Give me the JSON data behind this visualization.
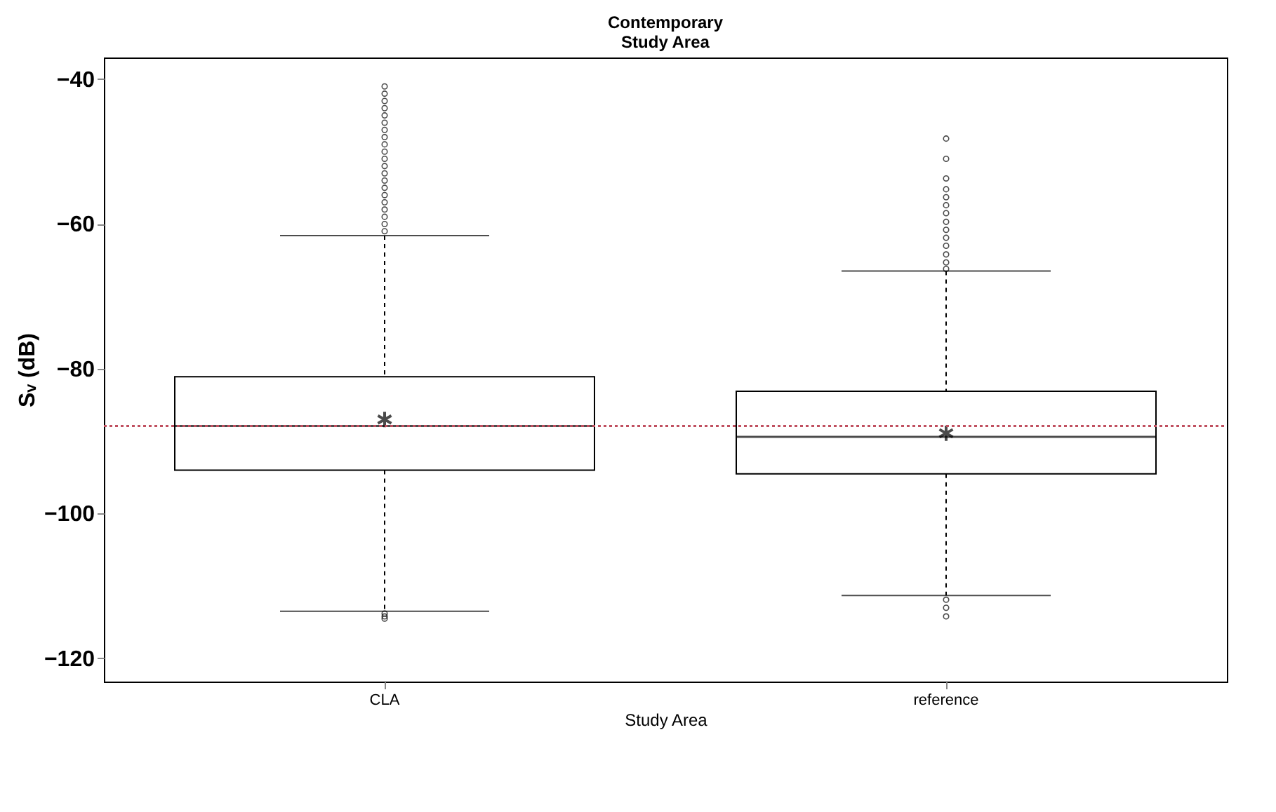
{
  "chart_data": {
    "type": "box",
    "title": "Contemporary\nStudy Area",
    "xlabel": "Study Area",
    "ylabel": "Sᵥ (dB)",
    "categories": [
      "CLA",
      "reference"
    ],
    "boxes": [
      {
        "low": -113.5,
        "q1": -94.0,
        "median": -87.9,
        "q3": -81.1,
        "high": -61.6,
        "mean": -87.0,
        "outliers": [
          -41,
          -42,
          -43,
          -44,
          -45,
          -46,
          -47,
          -48,
          -49,
          -50,
          -51,
          -52,
          -53,
          -54,
          -55,
          -56,
          -57,
          -58,
          -59,
          -60,
          -61,
          -113.8,
          -114.2,
          -114.5
        ]
      },
      {
        "low": -111.3,
        "q1": -94.5,
        "median": -89.4,
        "q3": -83.1,
        "high": -66.5,
        "mean": -88.9,
        "outliers": [
          -48.2,
          -51.0,
          -53.7,
          -55.2,
          -56.3,
          -57.4,
          -58.5,
          -59.7,
          -60.8,
          -61.9,
          -63.0,
          -64.2,
          -65.3,
          -66.2,
          -111.9,
          -113.0,
          -114.2
        ]
      }
    ],
    "ylim": [
      -123.2,
      -37
    ],
    "yticks": [
      -40,
      -60,
      -80,
      -100,
      -120
    ],
    "ref_lines": [
      {
        "axis": "y",
        "value": -87.9,
        "color": "#c05060",
        "line_style": "dotted"
      }
    ]
  }
}
